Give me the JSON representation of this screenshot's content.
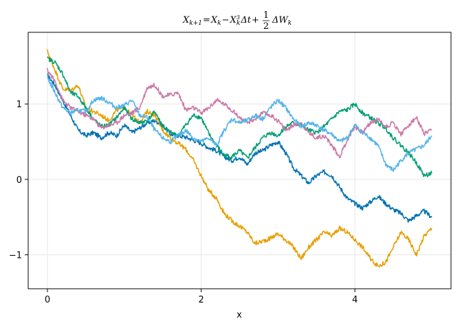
{
  "chart_data": {
    "type": "line",
    "title": {
      "lhs": "X",
      "lhs_sub": "k+1",
      "eq": "=",
      "x1": "X",
      "x1_sub": "k",
      "minus": "−",
      "x2": "X",
      "x2_sub": "k",
      "x2_sup": "3",
      "delta_t": "Δt",
      "plus": "+",
      "frac_num": "1",
      "frac_den": "2",
      "delta_w": "ΔW",
      "w_sub": "k"
    },
    "xlabel": "x",
    "ylabel": "",
    "xlim": [
      -0.25,
      5.25
    ],
    "ylim": [
      -1.45,
      1.95
    ],
    "xticks": [
      0,
      2,
      4
    ],
    "xtick_labels": [
      "0",
      "2",
      "4"
    ],
    "yticks": [
      -1,
      0,
      1
    ],
    "ytick_labels": [
      "−1",
      "0",
      "1"
    ],
    "grid": true,
    "series": [
      {
        "color": "#0072b2",
        "x": [
          0,
          0.1,
          0.2,
          0.3,
          0.4,
          0.5,
          0.6,
          0.7,
          0.8,
          0.9,
          1.0,
          1.1,
          1.2,
          1.3,
          1.4,
          1.5,
          1.6,
          1.7,
          1.8,
          1.9,
          2.0,
          2.1,
          2.2,
          2.3,
          2.4,
          2.5,
          2.6,
          2.7,
          2.8,
          2.9,
          3.0,
          3.1,
          3.2,
          3.3,
          3.4,
          3.5,
          3.6,
          3.7,
          3.8,
          3.9,
          4.0,
          4.1,
          4.2,
          4.3,
          4.4,
          4.5,
          4.6,
          4.7,
          4.8,
          4.9,
          5.0
        ],
        "values": [
          1.38,
          1.25,
          1.05,
          0.85,
          0.65,
          0.58,
          0.62,
          0.55,
          0.62,
          0.58,
          0.72,
          0.62,
          0.68,
          0.75,
          0.78,
          0.72,
          0.6,
          0.58,
          0.56,
          0.52,
          0.48,
          0.42,
          0.38,
          0.3,
          0.25,
          0.3,
          0.2,
          0.35,
          0.38,
          0.45,
          0.5,
          0.35,
          0.15,
          0.05,
          -0.05,
          0.05,
          0.1,
          0.05,
          -0.1,
          -0.25,
          -0.32,
          -0.38,
          -0.3,
          -0.22,
          -0.32,
          -0.4,
          -0.45,
          -0.55,
          -0.48,
          -0.42,
          -0.5
        ]
      },
      {
        "color": "#e69f00",
        "x": [
          0,
          0.1,
          0.2,
          0.3,
          0.4,
          0.5,
          0.6,
          0.7,
          0.8,
          0.9,
          1.0,
          1.1,
          1.2,
          1.3,
          1.4,
          1.5,
          1.6,
          1.7,
          1.8,
          1.9,
          2.0,
          2.1,
          2.2,
          2.3,
          2.4,
          2.5,
          2.6,
          2.7,
          2.8,
          2.9,
          3.0,
          3.1,
          3.2,
          3.3,
          3.4,
          3.5,
          3.6,
          3.7,
          3.8,
          3.9,
          4.0,
          4.1,
          4.2,
          4.3,
          4.4,
          4.5,
          4.6,
          4.7,
          4.8,
          4.9,
          5.0
        ],
        "values": [
          1.7,
          1.45,
          1.2,
          1.18,
          1.25,
          0.95,
          0.9,
          0.85,
          0.78,
          0.92,
          0.95,
          0.85,
          0.75,
          0.9,
          0.85,
          0.65,
          0.55,
          0.48,
          0.4,
          0.25,
          0.05,
          -0.15,
          -0.25,
          -0.45,
          -0.55,
          -0.62,
          -0.7,
          -0.85,
          -0.82,
          -0.78,
          -0.72,
          -0.8,
          -0.9,
          -1.05,
          -0.9,
          -0.8,
          -0.7,
          -0.75,
          -0.65,
          -0.7,
          -0.8,
          -0.9,
          -1.05,
          -1.15,
          -1.1,
          -0.9,
          -0.7,
          -0.8,
          -1.0,
          -0.75,
          -0.65
        ]
      },
      {
        "color": "#009e73",
        "x": [
          0,
          0.1,
          0.2,
          0.3,
          0.4,
          0.5,
          0.6,
          0.7,
          0.8,
          0.9,
          1.0,
          1.1,
          1.2,
          1.3,
          1.4,
          1.5,
          1.6,
          1.7,
          1.8,
          1.9,
          2.0,
          2.1,
          2.2,
          2.3,
          2.4,
          2.5,
          2.6,
          2.7,
          2.8,
          2.9,
          3.0,
          3.1,
          3.2,
          3.3,
          3.4,
          3.5,
          3.6,
          3.7,
          3.8,
          3.9,
          4.0,
          4.1,
          4.2,
          4.3,
          4.4,
          4.5,
          4.6,
          4.7,
          4.8,
          4.9,
          5.0
        ],
        "values": [
          1.6,
          1.55,
          1.4,
          1.15,
          1.1,
          0.95,
          0.8,
          0.7,
          0.72,
          0.82,
          0.95,
          0.8,
          0.75,
          0.78,
          0.9,
          0.7,
          0.62,
          0.58,
          0.72,
          0.85,
          0.82,
          0.6,
          0.45,
          0.32,
          0.3,
          0.38,
          0.28,
          0.42,
          0.55,
          0.62,
          0.58,
          0.7,
          0.75,
          0.72,
          0.65,
          0.62,
          0.7,
          0.8,
          0.9,
          0.92,
          1.0,
          0.88,
          0.82,
          0.75,
          0.68,
          0.55,
          0.45,
          0.35,
          0.22,
          0.05,
          0.08
        ]
      },
      {
        "color": "#cc79a7",
        "x": [
          0,
          0.1,
          0.2,
          0.3,
          0.4,
          0.5,
          0.6,
          0.7,
          0.8,
          0.9,
          1.0,
          1.1,
          1.2,
          1.3,
          1.4,
          1.5,
          1.6,
          1.7,
          1.8,
          1.9,
          2.0,
          2.1,
          2.2,
          2.3,
          2.4,
          2.5,
          2.6,
          2.7,
          2.8,
          2.9,
          3.0,
          3.1,
          3.2,
          3.3,
          3.4,
          3.5,
          3.6,
          3.7,
          3.8,
          3.9,
          4.0,
          4.1,
          4.2,
          4.3,
          4.4,
          4.5,
          4.6,
          4.7,
          4.8,
          4.9,
          5.0
        ],
        "values": [
          1.45,
          1.3,
          1.05,
          0.95,
          0.9,
          0.85,
          0.8,
          0.68,
          0.72,
          0.75,
          0.85,
          0.88,
          0.95,
          1.22,
          1.25,
          1.1,
          1.12,
          1.15,
          0.92,
          0.95,
          0.88,
          0.95,
          1.05,
          1.0,
          0.92,
          0.82,
          0.75,
          0.8,
          0.88,
          0.85,
          0.78,
          0.65,
          0.72,
          0.75,
          0.62,
          0.55,
          0.58,
          0.45,
          0.3,
          0.52,
          0.7,
          0.62,
          0.75,
          0.8,
          0.7,
          0.75,
          0.6,
          0.72,
          0.82,
          0.6,
          0.65
        ]
      },
      {
        "color": "#56b4e9",
        "x": [
          0,
          0.1,
          0.2,
          0.3,
          0.4,
          0.5,
          0.6,
          0.7,
          0.8,
          0.9,
          1.0,
          1.1,
          1.2,
          1.3,
          1.4,
          1.5,
          1.6,
          1.7,
          1.8,
          1.9,
          2.0,
          2.1,
          2.2,
          2.3,
          2.4,
          2.5,
          2.6,
          2.7,
          2.8,
          2.9,
          3.0,
          3.1,
          3.2,
          3.3,
          3.4,
          3.5,
          3.6,
          3.7,
          3.8,
          3.9,
          4.0,
          4.1,
          4.2,
          4.3,
          4.4,
          4.5,
          4.6,
          4.7,
          4.8,
          4.9,
          5.0
        ],
        "values": [
          1.35,
          1.15,
          0.95,
          0.88,
          0.92,
          0.9,
          1.05,
          1.08,
          1.02,
          0.95,
          0.98,
          1.05,
          0.85,
          0.82,
          0.65,
          0.55,
          0.5,
          0.58,
          0.65,
          0.55,
          0.5,
          0.55,
          0.45,
          0.65,
          0.8,
          0.75,
          0.78,
          0.85,
          0.8,
          0.95,
          1.05,
          0.95,
          0.8,
          0.7,
          0.75,
          0.72,
          0.65,
          0.6,
          0.5,
          0.55,
          0.72,
          0.62,
          0.55,
          0.45,
          0.2,
          0.12,
          0.25,
          0.35,
          0.4,
          0.45,
          0.58
        ]
      }
    ]
  }
}
